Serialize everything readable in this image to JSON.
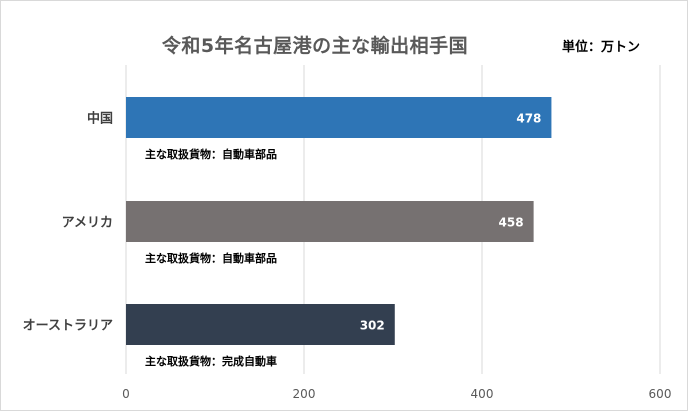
{
  "title": "令和5年名古屋港の主な輸出相手国",
  "unit_label": "単位：万トン",
  "chart_data": {
    "type": "bar",
    "orientation": "horizontal",
    "title": "令和5年名古屋港の主な輸出相手国",
    "xlabel": "",
    "ylabel": "",
    "xlim": [
      0,
      600
    ],
    "xticks": [
      0,
      200,
      400,
      600
    ],
    "grid": true,
    "categories": [
      "中国",
      "アメリカ",
      "オーストラリア"
    ],
    "values": [
      478,
      458,
      302
    ],
    "colors": [
      "#2e75b6",
      "#767171",
      "#333f50"
    ],
    "annotations": [
      "主な取扱貨物：自動車部品",
      "主な取扱貨物：自動車部品",
      "主な取扱貨物：完成自動車"
    ]
  }
}
